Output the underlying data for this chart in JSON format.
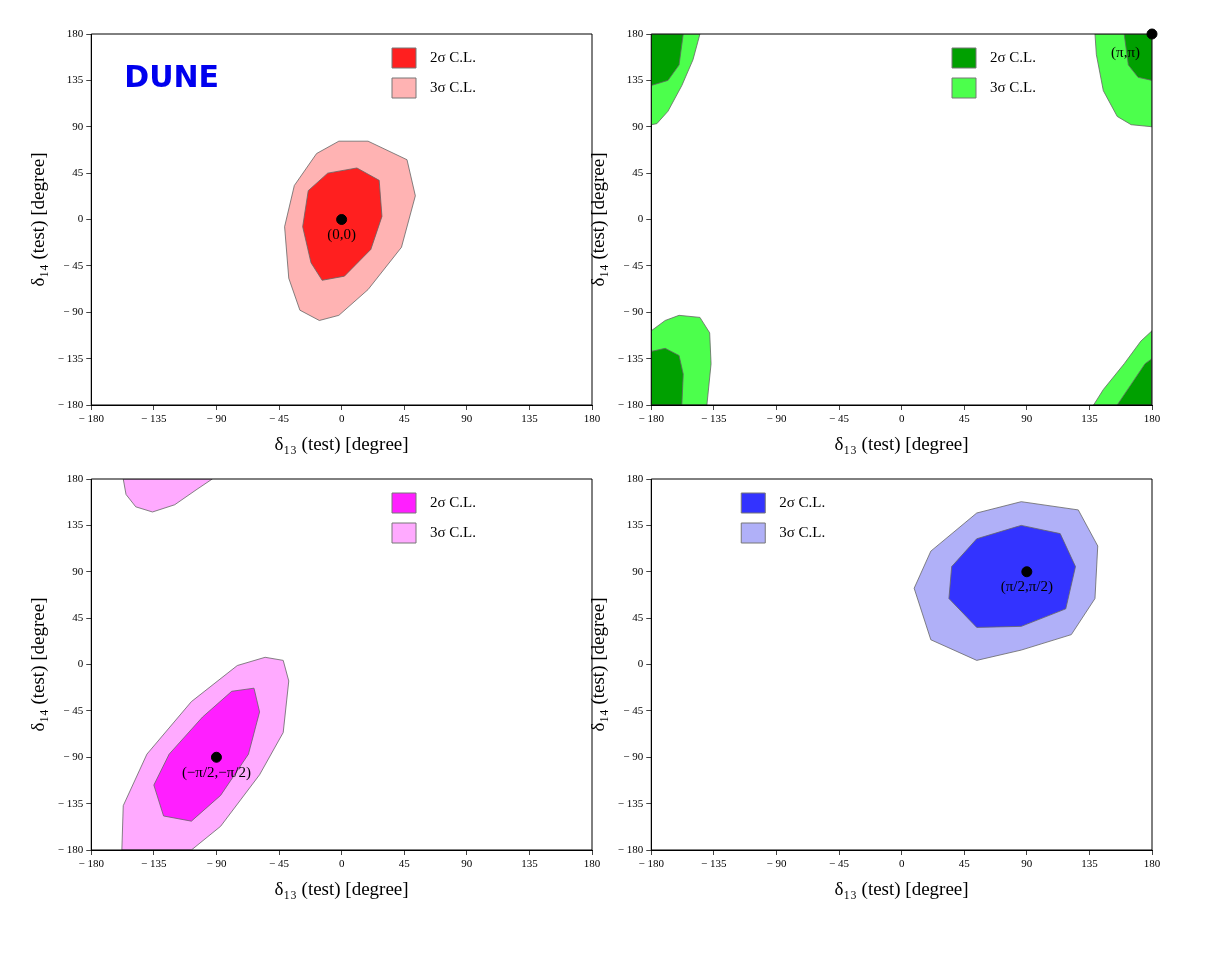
{
  "chart_data": [
    {
      "type": "area",
      "xlabel": "δ₁₃ (test) [degree]",
      "ylabel": "δ₁₄ (test) [degree]",
      "xlim": [
        -180,
        180
      ],
      "ylim": [
        -180,
        180
      ],
      "xticks": [
        -180,
        -135,
        -90,
        -45,
        0,
        45,
        90,
        135,
        180
      ],
      "yticks": [
        -180,
        -135,
        -90,
        -45,
        0,
        45,
        90,
        135,
        180
      ],
      "legend": "top right",
      "annotations": [
        "DUNE",
        {
          "text": "(0,0)",
          "x": 0,
          "y": 0
        }
      ],
      "series": [
        {
          "name": "2σ C.L.",
          "color": "#ff1f1f",
          "x": [
            11,
            27,
            29,
            21,
            2,
            -14,
            -22,
            -28,
            -24,
            -10
          ],
          "values": [
            50,
            38,
            3,
            -29,
            -55,
            -59,
            -42,
            -7,
            28,
            45
          ]
        },
        {
          "name": "3σ C.L.",
          "color": "#ffb3b3",
          "x": [
            19,
            47,
            53,
            43,
            19,
            -2,
            -16,
            -30,
            -38,
            -41,
            -34,
            -18,
            -2
          ],
          "values": [
            76,
            58,
            23,
            -27,
            -68,
            -93,
            -98,
            -88,
            -57,
            -7,
            33,
            64,
            76
          ]
        },
        {
          "type": "scatter",
          "marker": "circle",
          "color": "#000000",
          "x": [
            0
          ],
          "values": [
            0
          ]
        }
      ]
    },
    {
      "type": "area",
      "xlabel": "δ₁₃ (test) [degree]",
      "ylabel": "δ₁₄ (test) [degree]",
      "xlim": [
        -180,
        180
      ],
      "ylim": [
        -180,
        180
      ],
      "xticks": [
        -180,
        -135,
        -90,
        -45,
        0,
        45,
        90,
        135,
        180
      ],
      "yticks": [
        -180,
        -135,
        -90,
        -45,
        0,
        45,
        90,
        135,
        180
      ],
      "legend": "top right",
      "annotations": [
        {
          "text": "(π,π)",
          "x": 180,
          "y": 180
        }
      ],
      "series": [
        {
          "name": "2σ C.L.",
          "color": "#00a000",
          "x": [
            -180,
            -157,
            -160,
            -168,
            -180
          ],
          "values": [
            180,
            180,
            150,
            135,
            130
          ]
        },
        {
          "color": "#00a000",
          "x": [
            160,
            163,
            170,
            180,
            180
          ],
          "values": [
            180,
            150,
            138,
            135,
            180
          ]
        },
        {
          "color": "#00a000",
          "x": [
            -180,
            -170,
            -160,
            -157,
            -158,
            -180
          ],
          "values": [
            -128,
            -125,
            -132,
            -150,
            -180,
            -180
          ]
        },
        {
          "color": "#00a000",
          "x": [
            155,
            165,
            175,
            180,
            180
          ],
          "values": [
            -180,
            -160,
            -140,
            -135,
            -180
          ]
        },
        {
          "name": "3σ C.L.",
          "color": "#4cff4c",
          "x": [
            -180,
            -145,
            -150,
            -158,
            -168,
            -176,
            -180
          ],
          "values": [
            180,
            180,
            155,
            130,
            105,
            93,
            92
          ]
        },
        {
          "color": "#4cff4c",
          "x": [
            139,
            140,
            145,
            155,
            165,
            180,
            180
          ],
          "values": [
            180,
            160,
            125,
            100,
            92,
            90,
            180
          ]
        },
        {
          "color": "#4cff4c",
          "x": [
            -180,
            -170,
            -160,
            -145,
            -138,
            -137,
            -140,
            -180
          ],
          "values": [
            -108,
            -98,
            -93,
            -95,
            -110,
            -140,
            -180,
            -180
          ]
        },
        {
          "color": "#4cff4c",
          "x": [
            138,
            145,
            160,
            172,
            180,
            180
          ],
          "values": [
            -180,
            -165,
            -140,
            -118,
            -108,
            -180
          ]
        },
        {
          "type": "scatter",
          "marker": "circle",
          "color": "#000000",
          "x": [
            180
          ],
          "values": [
            180
          ]
        }
      ]
    },
    {
      "type": "area",
      "xlabel": "δ₁₃ (test) [degree]",
      "ylabel": "δ₁₄ (test) [degree]",
      "xlim": [
        -180,
        180
      ],
      "ylim": [
        -180,
        180
      ],
      "xticks": [
        -180,
        -135,
        -90,
        -45,
        0,
        45,
        90,
        135,
        180
      ],
      "yticks": [
        -180,
        -135,
        -90,
        -45,
        0,
        45,
        90,
        135,
        180
      ],
      "legend": "top right",
      "annotations": [
        {
          "text": "(−π/2,−π/2)",
          "x": -90,
          "y": -90
        }
      ],
      "series": [
        {
          "name": "2σ C.L.",
          "color": "#ff1fff",
          "x": [
            -63,
            -59,
            -67,
            -87,
            -108,
            -128,
            -135,
            -124,
            -100,
            -79
          ],
          "values": [
            -23,
            -46,
            -87,
            -127,
            -152,
            -147,
            -117,
            -87,
            -51,
            -26
          ]
        },
        {
          "name": "3σ C.L.",
          "color": "#ffaaff",
          "x": [
            -55,
            -42,
            -38,
            -42,
            -59,
            -87,
            -108,
            -158,
            -157,
            -140,
            -108,
            -75
          ],
          "values": [
            7,
            4,
            -16,
            -66,
            -107,
            -157,
            -180,
            -180,
            -137,
            -87,
            -36,
            -1
          ]
        },
        {
          "color": "#ffaaff",
          "x": [
            -157,
            -155,
            -148,
            -136,
            -120,
            -104,
            -93
          ],
          "values": [
            180,
            165,
            153,
            148,
            155,
            170,
            180
          ]
        },
        {
          "type": "scatter",
          "marker": "circle",
          "color": "#000000",
          "x": [
            -90
          ],
          "values": [
            -90
          ]
        }
      ]
    },
    {
      "type": "area",
      "xlabel": "δ₁₃ (test) [degree]",
      "ylabel": "δ₁₄ (test) [degree]",
      "xlim": [
        -180,
        180
      ],
      "ylim": [
        -180,
        180
      ],
      "xticks": [
        -180,
        -135,
        -90,
        -45,
        0,
        45,
        90,
        135,
        180
      ],
      "yticks": [
        -180,
        -135,
        -90,
        -45,
        0,
        45,
        90,
        135,
        180
      ],
      "legend": "top left",
      "annotations": [
        {
          "text": "(π/2,π/2)",
          "x": 90,
          "y": 90
        }
      ],
      "series": [
        {
          "name": "2σ C.L.",
          "color": "#3333ff",
          "x": [
            86,
            114,
            125,
            118,
            86,
            54,
            34,
            36,
            54
          ],
          "values": [
            135,
            127,
            95,
            54,
            37,
            36,
            64,
            95,
            122
          ]
        },
        {
          "name": "3σ C.L.",
          "color": "#b0b0f8",
          "x": [
            86,
            127,
            141,
            139,
            122,
            86,
            54,
            21,
            9,
            21,
            54
          ],
          "values": [
            158,
            150,
            115,
            64,
            29,
            14,
            4,
            24,
            74,
            110,
            147
          ]
        },
        {
          "type": "scatter",
          "marker": "circle",
          "color": "#000000",
          "x": [
            90
          ],
          "values": [
            90
          ]
        }
      ]
    }
  ]
}
